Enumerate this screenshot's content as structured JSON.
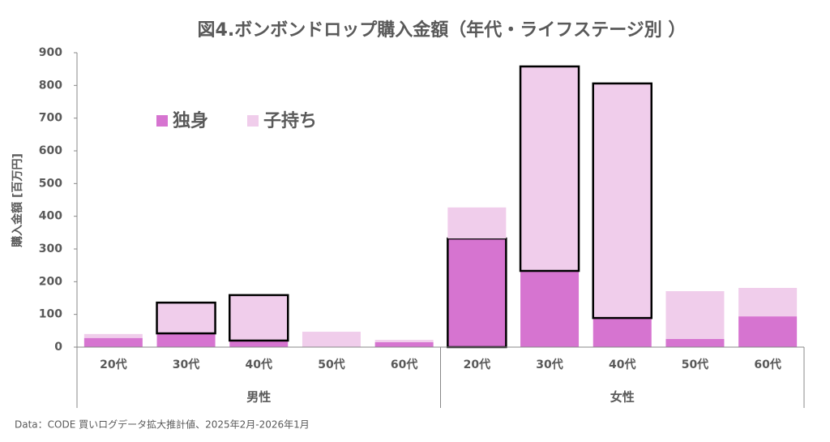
{
  "chart_data": {
    "type": "stacked-bar",
    "title": "図4.ボンボンドロップ購入金額（年代・ライフステージ別 ）",
    "y_label": "購入金額 [百万円]",
    "source": "Data：CODE 買いログデータ拡大推計値、2025年2月-2026年1月",
    "groups": [
      {
        "label": "男性",
        "categories": [
          "20代",
          "30代",
          "40代",
          "50代",
          "60代"
        ]
      },
      {
        "label": "女性",
        "categories": [
          "20代",
          "30代",
          "40代",
          "50代",
          "60代"
        ]
      }
    ],
    "series": [
      {
        "name": "独身",
        "color": "#d674d0",
        "values": [
          28,
          42,
          20,
          0,
          15,
          332,
          233,
          89,
          25,
          94
        ],
        "outlined": [
          false,
          false,
          false,
          false,
          false,
          true,
          false,
          false,
          false,
          false
        ]
      },
      {
        "name": "子持ち",
        "color": "#f0cdeb",
        "values": [
          12,
          94,
          139,
          47,
          7,
          95,
          625,
          717,
          146,
          87
        ],
        "outlined": [
          false,
          true,
          true,
          false,
          false,
          false,
          true,
          true,
          false,
          false
        ]
      }
    ],
    "ylim": [
      0,
      900
    ],
    "yticks": [
      0,
      100,
      200,
      300,
      400,
      500,
      600,
      700,
      800,
      900
    ],
    "legend": "upper-left"
  }
}
